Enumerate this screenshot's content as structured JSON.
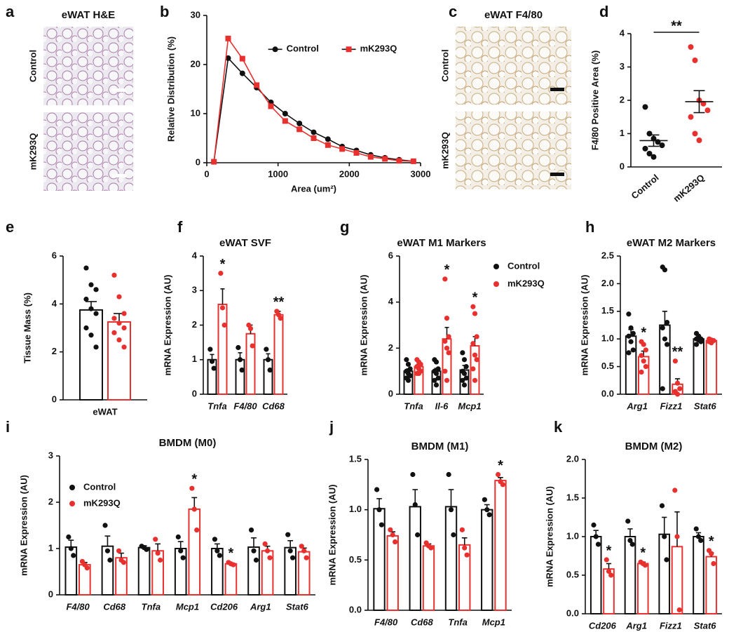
{
  "chart_data": [
    {
      "panel": "a",
      "type": "image",
      "title": "eWAT H&E",
      "rows": [
        "Control",
        "mK293Q"
      ],
      "fill": "he"
    },
    {
      "panel": "b",
      "type": "line",
      "xlabel": "Area (um²)",
      "ylabel": "Relative Distribution (%)",
      "x": [
        100,
        300,
        500,
        700,
        900,
        1100,
        1300,
        1500,
        1700,
        1900,
        2100,
        2300,
        2500,
        2700,
        2900
      ],
      "series": [
        {
          "name": "Control",
          "color": "#111111",
          "marker": "circle",
          "values": [
            0.2,
            21.3,
            18.2,
            15.3,
            12.3,
            10,
            8,
            6.2,
            4.8,
            3.3,
            2.5,
            1.6,
            1,
            0.6,
            0.3
          ]
        },
        {
          "name": "mK293Q",
          "color": "#e8312f",
          "marker": "square",
          "values": [
            0.2,
            25.3,
            21.2,
            15.8,
            11.5,
            8.5,
            6.8,
            5,
            3.6,
            2.8,
            2,
            1.2,
            0.8,
            0.4,
            0.3
          ]
        }
      ],
      "xlim": [
        0,
        3000
      ],
      "xticks": [
        0,
        1000,
        2000,
        3000
      ],
      "ylim": [
        0,
        30
      ],
      "yticks": [
        0,
        10,
        20,
        30
      ],
      "legend": "upper right"
    },
    {
      "panel": "c",
      "type": "image",
      "title": "eWAT F4/80",
      "rows": [
        "Control",
        "mK293Q"
      ],
      "fill": "f480"
    },
    {
      "panel": "d",
      "type": "dot",
      "ylabel": "F4/80 Positive Area (%)",
      "categories": [
        "Control",
        "mK293Q"
      ],
      "colors": [
        "#111111",
        "#e8312f"
      ],
      "values": [
        0.79,
        1.96
      ],
      "errors": [
        0.17,
        0.33
      ],
      "points": [
        [
          1.8,
          1.0,
          0.85,
          0.75,
          0.65,
          0.55,
          0.4,
          0.3
        ],
        [
          3.6,
          3.2,
          2.0,
          1.9,
          1.7,
          1.5,
          1.0,
          0.8
        ]
      ],
      "significance": "**",
      "ylim": [
        0,
        4
      ],
      "yticks": [
        0,
        1,
        2,
        3,
        4
      ]
    },
    {
      "panel": "e",
      "type": "bar",
      "ylabel": "Tissue Mass (%)",
      "categories": [
        "eWAT"
      ],
      "series": [
        {
          "color": "#111111",
          "values": [
            3.75
          ],
          "errors": [
            0.35
          ],
          "points": [
            [
              5.5,
              4.8,
              4.6,
              4.2,
              3.8,
              3.6,
              3.0,
              2.7,
              2.2
            ]
          ]
        },
        {
          "color": "#e8312f",
          "values": [
            3.25
          ],
          "errors": [
            0.35
          ],
          "points": [
            [
              5.2,
              4.3,
              3.6,
              3.4,
              3.2,
              3.0,
              2.8,
              2.5,
              2.2
            ]
          ]
        }
      ],
      "ylim": [
        0,
        6
      ],
      "yticks": [
        0,
        2,
        4,
        6
      ]
    },
    {
      "panel": "f",
      "type": "bar",
      "title": "eWAT SVF",
      "ylabel": "mRNA Expression (AU)",
      "categories": [
        "Tnfa",
        "F4/80",
        "Cd68"
      ],
      "italic_categories": true,
      "series": [
        {
          "color": "#111111",
          "values": [
            1,
            1,
            1
          ],
          "errors": [
            0.15,
            0.2,
            0.17
          ],
          "points": [
            [
              1.3,
              0.95,
              0.75
            ],
            [
              1.35,
              1.0,
              0.7
            ],
            [
              1.3,
              1.0,
              0.7
            ]
          ]
        },
        {
          "color": "#e8312f",
          "values": [
            2.6,
            1.75,
            2.3
          ],
          "errors": [
            0.45,
            0.25,
            0.1
          ],
          "points": [
            [
              3.5,
              2.5,
              2.0
            ],
            [
              2.0,
              1.9,
              1.4
            ],
            [
              2.4,
              2.3,
              2.2
            ]
          ],
          "significance": [
            "*",
            null,
            "**"
          ]
        }
      ],
      "ylim": [
        0,
        4
      ],
      "yticks": [
        0,
        1,
        2,
        3,
        4
      ]
    },
    {
      "panel": "g",
      "type": "bar",
      "title": "eWAT M1 Markers",
      "ylabel": "mRNA Expression (AU)",
      "categories": [
        "Tnfa",
        "Il-6",
        "Mcp1"
      ],
      "italic_categories": true,
      "series": [
        {
          "name": "Control",
          "color": "#111111",
          "values": [
            1.0,
            1.0,
            1.05
          ],
          "errors": [
            0.1,
            0.12,
            0.2
          ],
          "points": [
            [
              1.5,
              1.3,
              1.1,
              1.0,
              0.9,
              0.8,
              0.7,
              0.6
            ],
            [
              1.5,
              1.4,
              1.1,
              1.0,
              0.9,
              0.7,
              0.6,
              0.4
            ],
            [
              1.8,
              1.5,
              1.2,
              1.0,
              0.9,
              0.7,
              0.6,
              0.4
            ]
          ]
        },
        {
          "name": "mK293Q",
          "color": "#e8312f",
          "values": [
            1.2,
            2.4,
            2.1
          ],
          "errors": [
            0.1,
            0.5,
            0.4
          ],
          "points": [
            [
              1.5,
              1.4,
              1.3,
              1.2,
              1.1,
              1.0,
              0.9,
              0.9
            ],
            [
              5.0,
              3.3,
              2.5,
              2.3,
              2.0,
              1.8,
              1.0,
              0.6
            ],
            [
              3.8,
              3.5,
              2.5,
              2.2,
              1.7,
              1.5,
              1.1,
              0.6
            ]
          ],
          "significance": [
            null,
            "*",
            "*"
          ]
        }
      ],
      "ylim": [
        0,
        6
      ],
      "yticks": [
        0,
        2,
        4,
        6
      ],
      "legend": "right"
    },
    {
      "panel": "h",
      "type": "bar",
      "title": "eWAT M2 Markers",
      "ylabel": "mRNA Expression (AU)",
      "categories": [
        "Arg1",
        "Fizz1",
        "Stat6"
      ],
      "italic_categories": true,
      "series": [
        {
          "color": "#111111",
          "values": [
            1.05,
            1.25,
            1.0
          ],
          "errors": [
            0.12,
            0.25,
            0.03
          ],
          "points": [
            [
              1.45,
              1.2,
              1.1,
              1.05,
              0.95,
              0.8,
              0.75
            ],
            [
              2.3,
              2.25,
              1.3,
              1.2,
              1.0,
              0.9,
              0.1
            ],
            [
              1.1,
              1.05,
              1.0,
              1.0,
              0.98,
              0.95,
              0.9
            ]
          ]
        },
        {
          "color": "#e8312f",
          "values": [
            0.68,
            0.18,
            0.97
          ],
          "errors": [
            0.1,
            0.1,
            0.03
          ],
          "points": [
            [
              0.95,
              0.9,
              0.8,
              0.7,
              0.6,
              0.5,
              0.4
            ],
            [
              0.6,
              0.2,
              0.1,
              0.05,
              0.0
            ],
            [
              1.0,
              0.98,
              0.97,
              0.95,
              0.93
            ]
          ],
          "significance": [
            "*",
            "**",
            null
          ]
        }
      ],
      "ylim": [
        0,
        2.5
      ],
      "yticks": [
        {
          "value": 0,
          "label": "0.0"
        },
        0.5,
        {
          "value": 1,
          "label": "1.0"
        },
        1.5,
        {
          "value": 2,
          "label": "2.0"
        },
        2.5
      ]
    },
    {
      "panel": "i",
      "type": "bar",
      "title": "BMDM (M0)",
      "ylabel": "mRNA Expression (AU)",
      "categories": [
        "F4/80",
        "Cd68",
        "Tnfa",
        "Mcp1",
        "Cd206",
        "Arg1",
        "Stat6"
      ],
      "italic_categories": true,
      "series": [
        {
          "name": "Control",
          "color": "#111111",
          "values": [
            1.03,
            1.05,
            1.02,
            1.0,
            1.0,
            1.03,
            1.02
          ],
          "errors": [
            0.15,
            0.22,
            0.04,
            0.15,
            0.1,
            0.2,
            0.15
          ],
          "points": [
            [
              1.25,
              1.0,
              0.85
            ],
            [
              1.5,
              0.95,
              0.75
            ],
            [
              1.05,
              1.02,
              0.98
            ],
            [
              1.25,
              0.95,
              0.8
            ],
            [
              1.2,
              0.95,
              0.85
            ],
            [
              1.4,
              0.95,
              0.75
            ],
            [
              1.3,
              0.95,
              0.8
            ]
          ]
        },
        {
          "name": "mK293Q",
          "color": "#e8312f",
          "values": [
            0.65,
            0.8,
            0.95,
            1.85,
            0.67,
            0.95,
            0.93
          ],
          "errors": [
            0.05,
            0.1,
            0.15,
            0.25,
            0.02,
            0.1,
            0.08
          ],
          "points": [
            [
              0.72,
              0.65,
              0.58
            ],
            [
              0.95,
              0.75,
              0.7
            ],
            [
              1.2,
              0.9,
              0.75
            ],
            [
              2.3,
              1.85,
              1.4
            ],
            [
              0.7,
              0.67,
              0.65
            ],
            [
              1.1,
              0.95,
              0.8
            ],
            [
              1.05,
              0.95,
              0.8
            ]
          ],
          "significance": [
            null,
            null,
            null,
            "*",
            "*",
            null,
            null
          ]
        }
      ],
      "ylim": [
        0,
        3
      ],
      "yticks": [
        0,
        1,
        2,
        3
      ],
      "legend": "upper left"
    },
    {
      "panel": "j",
      "type": "bar",
      "title": "BMDM (M1)",
      "ylabel": "mRNA Expression (AU)",
      "categories": [
        "F4/80",
        "Cd68",
        "Tnfa",
        "Mcp1"
      ],
      "italic_categories": true,
      "series": [
        {
          "color": "#111111",
          "values": [
            1.01,
            1.03,
            1.03,
            1.0
          ],
          "errors": [
            0.1,
            0.17,
            0.17,
            0.05
          ],
          "points": [
            [
              1.2,
              1.0,
              0.85
            ],
            [
              1.35,
              1.05,
              0.75
            ],
            [
              1.35,
              1.0,
              0.75
            ],
            [
              1.1,
              1.0,
              0.95
            ]
          ]
        },
        {
          "color": "#e8312f",
          "values": [
            0.74,
            0.64,
            0.65,
            1.29
          ],
          "errors": [
            0.04,
            0.02,
            0.07,
            0.03
          ],
          "points": [
            [
              0.8,
              0.75,
              0.68
            ],
            [
              0.67,
              0.64,
              0.62
            ],
            [
              0.8,
              0.62,
              0.55
            ],
            [
              1.35,
              1.28,
              1.25
            ]
          ],
          "significance": [
            null,
            null,
            null,
            "*"
          ]
        }
      ],
      "ylim": [
        0,
        1.5
      ],
      "yticks": [
        {
          "value": 0,
          "label": "0.0"
        },
        0.5,
        {
          "value": 1,
          "label": "1.0"
        },
        1.5
      ]
    },
    {
      "panel": "k",
      "type": "bar",
      "title": "BMDM (M2)",
      "ylabel": "mRNA Expression (AU)",
      "categories": [
        "Cd206",
        "Arg1",
        "Fizz1",
        "Stat6"
      ],
      "italic_categories": true,
      "series": [
        {
          "color": "#111111",
          "values": [
            1.0,
            1.0,
            1.03,
            1.0
          ],
          "errors": [
            0.08,
            0.1,
            0.22,
            0.05
          ],
          "points": [
            [
              1.15,
              1.0,
              0.9
            ],
            [
              1.2,
              0.95,
              0.9
            ],
            [
              1.4,
              1.0,
              0.7
            ],
            [
              1.1,
              1.0,
              0.95
            ]
          ]
        },
        {
          "color": "#e8312f",
          "values": [
            0.58,
            0.65,
            0.87,
            0.74
          ],
          "errors": [
            0.07,
            0.02,
            0.45,
            0.05
          ],
          "points": [
            [
              0.7,
              0.55,
              0.5
            ],
            [
              0.67,
              0.65,
              0.63
            ],
            [
              1.6,
              1.0,
              0.05
            ],
            [
              0.82,
              0.78,
              0.65
            ]
          ],
          "significance": [
            "*",
            "*",
            null,
            "*"
          ]
        }
      ],
      "ylim": [
        0,
        2
      ],
      "yticks": [
        {
          "value": 0,
          "label": "0.0"
        },
        0.5,
        {
          "value": 1,
          "label": "1.0"
        },
        1.5,
        {
          "value": 2,
          "label": "2.0"
        }
      ]
    }
  ]
}
